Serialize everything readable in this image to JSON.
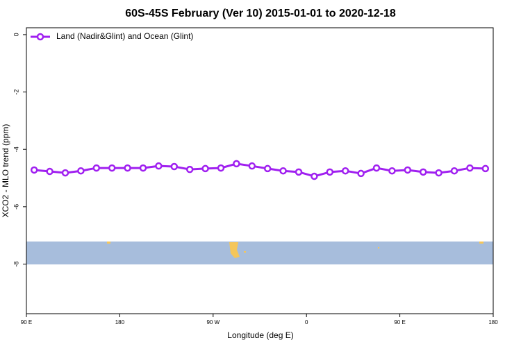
{
  "chart_data": {
    "type": "line",
    "title": "60S-45S February (Ver 10)   2015-01-01 to 2020-12-18",
    "x_label": "Longitude (deg E)",
    "y_label": "XCO2 - MLO trend (ppm)",
    "x": [
      97.5,
      112.5,
      127.5,
      142.5,
      157.5,
      172.5,
      187.5,
      202.5,
      217.5,
      232.5,
      247.5,
      262.5,
      277.5,
      292.5,
      307.5,
      322.5,
      337.5,
      352.5,
      367.5,
      382.5,
      397.5,
      412.5,
      427.5,
      442.5,
      457.5,
      472.5,
      487.5,
      502.5,
      517.5,
      532.5
    ],
    "series": [
      {
        "name": "Land (Nadir&Glint) and Ocean (Glint)",
        "color": "#a020f0",
        "values": [
          -4.72,
          -4.77,
          -4.82,
          -4.75,
          -4.65,
          -4.65,
          -4.65,
          -4.65,
          -4.58,
          -4.6,
          -4.7,
          -4.67,
          -4.65,
          -4.5,
          -4.58,
          -4.67,
          -4.75,
          -4.79,
          -4.94,
          -4.79,
          -4.75,
          -4.84,
          -4.65,
          -4.75,
          -4.72,
          -4.79,
          -4.82,
          -4.75,
          -4.65,
          -4.67
        ]
      }
    ],
    "xlim": [
      90,
      540
    ],
    "ylim": [
      -9.73,
      0.24
    ],
    "xticks": [
      {
        "value": 90,
        "label": "90 E"
      },
      180,
      {
        "value": 270,
        "label": "90 W"
      },
      {
        "value": 360,
        "label": "0"
      },
      {
        "value": 450,
        "label": "90 E"
      },
      {
        "value": 540,
        "label": "180"
      }
    ],
    "yticks": [
      0,
      -2,
      -4,
      -6,
      -8
    ],
    "legend": "top-left"
  }
}
